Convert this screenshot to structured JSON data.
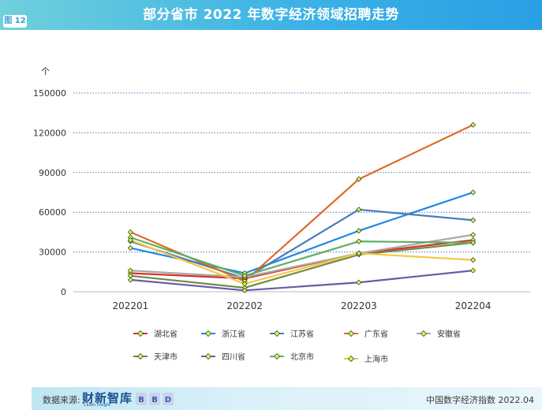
{
  "header": {
    "figure_label": "图 12",
    "title": "部分省市 2022 年数字经济领域招聘走势"
  },
  "footer": {
    "source_label": "数据来源:",
    "logo_text": "财新智库",
    "logo_subtext": "Caixin Insight",
    "logo_mark": "BBD",
    "index_label": "中国数字经济指数 2022.04"
  },
  "chart_data": {
    "type": "line",
    "title": "部分省市 2022 年数字经济领域招聘走势",
    "ylabel": "个",
    "xlabel": "",
    "categories": [
      "202201",
      "202202",
      "202203",
      "202204"
    ],
    "ylim": [
      0,
      150000
    ],
    "yticks": [
      0,
      30000,
      60000,
      90000,
      120000,
      150000
    ],
    "grid": "horizontal dotted",
    "legend_position": "bottom",
    "series": [
      {
        "name": "湖北省",
        "color": "#d9302c",
        "values": [
          14000,
          10000,
          29000,
          39000
        ]
      },
      {
        "name": "浙江省",
        "color": "#1e88e5",
        "values": [
          33000,
          14000,
          46000,
          75000
        ]
      },
      {
        "name": "江苏省",
        "color": "#4a7db8",
        "values": [
          38000,
          10000,
          62000,
          54000
        ]
      },
      {
        "name": "广东省",
        "color": "#e06a2a",
        "values": [
          45000,
          8000,
          85000,
          126000
        ]
      },
      {
        "name": "安徽省",
        "color": "#a9a9a9",
        "values": [
          16000,
          11000,
          29000,
          43000
        ]
      },
      {
        "name": "天津市",
        "color": "#6e8a45",
        "values": [
          12000,
          3000,
          28000,
          37000
        ]
      },
      {
        "name": "四川省",
        "color": "#6a5aa8",
        "values": [
          9000,
          1000,
          7000,
          16000
        ]
      },
      {
        "name": "北京市",
        "color": "#5fae67",
        "values": [
          41000,
          12000,
          38000,
          37000
        ]
      },
      {
        "name": "上海市",
        "color": "#f5c842",
        "values": [
          39000,
          6000,
          29000,
          24000
        ]
      }
    ]
  }
}
